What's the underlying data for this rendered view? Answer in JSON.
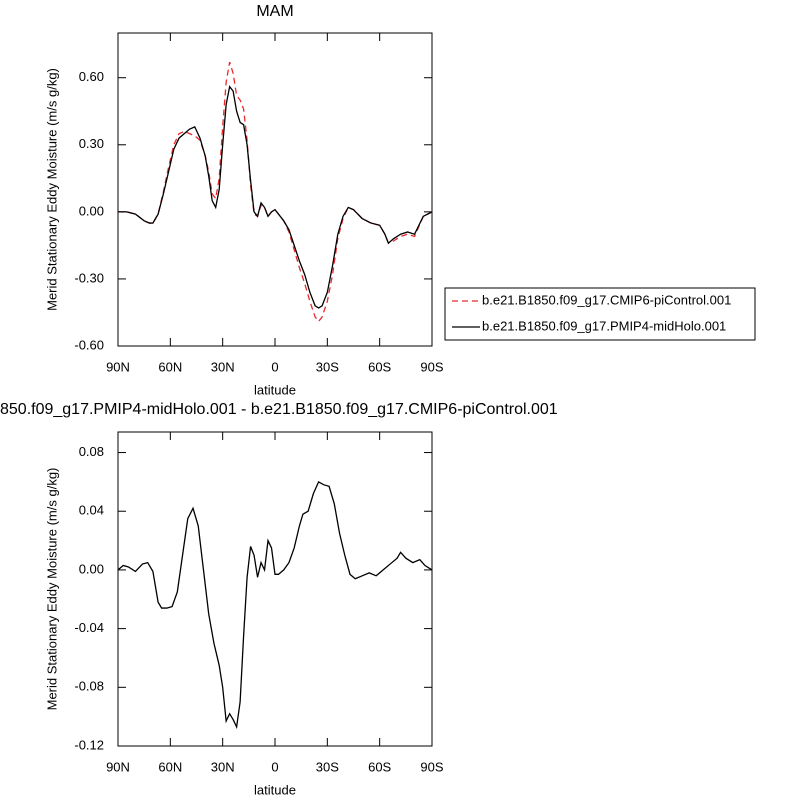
{
  "chart_data": [
    {
      "type": "line",
      "title": "MAM",
      "xlabel": "latitude",
      "ylabel": "Merid Stationary Eddy Moisture (m/s g/kg)",
      "x": [
        90,
        85,
        80,
        75,
        72,
        70,
        67,
        64,
        61,
        58,
        55,
        52,
        49,
        46,
        43,
        40,
        38,
        36,
        34,
        32,
        30,
        28,
        26,
        24,
        22,
        20,
        18,
        16,
        14,
        12,
        10,
        8,
        6,
        4,
        2,
        0,
        -2,
        -5,
        -8,
        -11,
        -14,
        -17,
        -20,
        -23,
        -25,
        -27,
        -30,
        -33,
        -36,
        -39,
        -42,
        -45,
        -50,
        -55,
        -60,
        -63,
        -65,
        -68,
        -72,
        -76,
        -80,
        -85,
        -90
      ],
      "series": [
        {
          "name": "b.e21.B1850.f09_g17.CMIP6-piControl.001",
          "color": "#e8292b",
          "dash": true,
          "values": [
            0,
            0,
            -0.01,
            -0.04,
            -0.05,
            -0.05,
            -0.01,
            0.09,
            0.2,
            0.3,
            0.35,
            0.36,
            0.35,
            0.34,
            0.32,
            0.25,
            0.18,
            0.08,
            0.06,
            0.15,
            0.38,
            0.58,
            0.67,
            0.62,
            0.52,
            0.5,
            0.46,
            0.32,
            0.12,
            -0.01,
            -0.02,
            0.03,
            0.02,
            -0.02,
            0.0,
            0.01,
            -0.01,
            -0.04,
            -0.09,
            -0.17,
            -0.25,
            -0.32,
            -0.4,
            -0.47,
            -0.49,
            -0.47,
            -0.4,
            -0.28,
            -0.12,
            -0.03,
            0.02,
            0.01,
            -0.03,
            -0.05,
            -0.06,
            -0.1,
            -0.14,
            -0.13,
            -0.11,
            -0.1,
            -0.11,
            -0.02,
            0.0
          ]
        },
        {
          "name": "b.e21.B1850.f09_g17.PMIP4-midHolo.001",
          "color": "#000000",
          "dash": false,
          "values": [
            0,
            0,
            -0.01,
            -0.04,
            -0.05,
            -0.05,
            -0.01,
            0.08,
            0.18,
            0.28,
            0.33,
            0.35,
            0.37,
            0.38,
            0.33,
            0.25,
            0.16,
            0.05,
            0.02,
            0.1,
            0.3,
            0.48,
            0.56,
            0.54,
            0.45,
            0.4,
            0.39,
            0.3,
            0.14,
            0.0,
            -0.02,
            0.04,
            0.02,
            -0.02,
            0.0,
            0.01,
            -0.01,
            -0.04,
            -0.08,
            -0.15,
            -0.22,
            -0.28,
            -0.36,
            -0.42,
            -0.43,
            -0.42,
            -0.36,
            -0.24,
            -0.1,
            -0.02,
            0.02,
            0.01,
            -0.03,
            -0.05,
            -0.06,
            -0.1,
            -0.14,
            -0.12,
            -0.1,
            -0.09,
            -0.1,
            -0.02,
            0.0
          ]
        }
      ],
      "xlim": [
        90,
        -90
      ],
      "xticks": [
        {
          "value": 90,
          "label": "90N"
        },
        {
          "value": 60,
          "label": "60N"
        },
        {
          "value": 30,
          "label": "30N"
        },
        0,
        {
          "value": -30,
          "label": "30S"
        },
        {
          "value": -60,
          "label": "60S"
        },
        {
          "value": -90,
          "label": "90S"
        }
      ],
      "ylim": [
        -0.6,
        0.8
      ],
      "yticks": [
        {
          "value": -0.6,
          "label": "-0.60"
        },
        {
          "value": -0.3,
          "label": "-0.30"
        },
        {
          "value": 0,
          "label": "0.00"
        },
        {
          "value": 0.3,
          "label": "0.30"
        },
        {
          "value": 0.6,
          "label": "0.60"
        }
      ],
      "legend": "right"
    },
    {
      "type": "line",
      "title": "850.f09_g17.PMIP4-midHolo.001 - b.e21.B1850.f09_g17.CMIP6-piControl.001",
      "xlabel": "latitude",
      "ylabel": "Merid Stationary Eddy Moisture (m/s g/kg)",
      "x": [
        90,
        87,
        84,
        80,
        76,
        73,
        70,
        67,
        65,
        62,
        59,
        56,
        53,
        50,
        47,
        44,
        41,
        38,
        35,
        32,
        30,
        28,
        26,
        24,
        22,
        20,
        18,
        16,
        14,
        12,
        10,
        8,
        6,
        4,
        2,
        0,
        -2,
        -5,
        -8,
        -11,
        -14,
        -16,
        -19,
        -22,
        -25,
        -28,
        -31,
        -34,
        -37,
        -40,
        -43,
        -46,
        -50,
        -54,
        -58,
        -62,
        -66,
        -70,
        -72,
        -75,
        -79,
        -83,
        -86,
        -90
      ],
      "values": [
        0,
        0.003,
        0.002,
        -0.001,
        0.004,
        0.005,
        -0.001,
        -0.022,
        -0.026,
        -0.026,
        -0.025,
        -0.015,
        0.01,
        0.035,
        0.042,
        0.03,
        0.0,
        -0.03,
        -0.05,
        -0.065,
        -0.08,
        -0.103,
        -0.098,
        -0.102,
        -0.107,
        -0.09,
        -0.045,
        -0.005,
        0.016,
        0.01,
        -0.005,
        0.005,
        0.0,
        0.02,
        0.015,
        -0.003,
        -0.003,
        0.0,
        0.005,
        0.015,
        0.03,
        0.038,
        0.04,
        0.052,
        0.06,
        0.058,
        0.057,
        0.045,
        0.025,
        0.01,
        -0.003,
        -0.006,
        -0.004,
        -0.002,
        -0.004,
        0.0,
        0.004,
        0.008,
        0.012,
        0.008,
        0.005,
        0.007,
        0.003,
        0.0
      ],
      "color": "#000000",
      "xlim": [
        90,
        -90
      ],
      "xticks": [
        {
          "value": 90,
          "label": "90N"
        },
        {
          "value": 60,
          "label": "60N"
        },
        {
          "value": 30,
          "label": "30N"
        },
        0,
        {
          "value": -30,
          "label": "30S"
        },
        {
          "value": -60,
          "label": "60S"
        },
        {
          "value": -90,
          "label": "90S"
        }
      ],
      "ylim": [
        -0.12,
        0.094
      ],
      "yticks": [
        -0.12,
        -0.08,
        -0.04,
        {
          "value": 0,
          "label": "0.00"
        },
        0.04,
        0.08
      ]
    }
  ]
}
